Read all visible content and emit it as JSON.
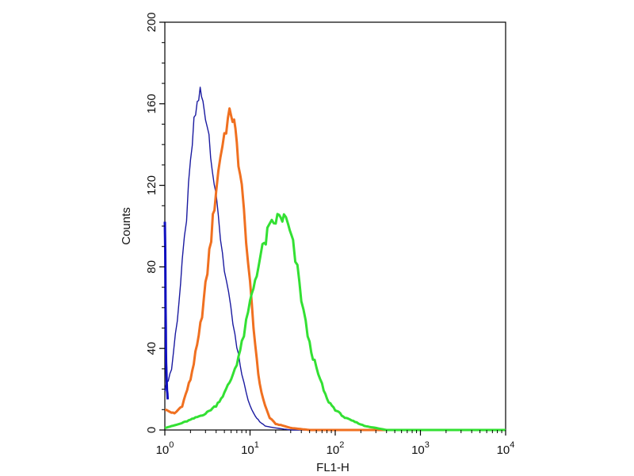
{
  "chart_data": {
    "type": "line",
    "title": "",
    "xlabel": "FL1-H",
    "ylabel": "Counts",
    "xscale": "log",
    "xlim": [
      1,
      10000
    ],
    "ylim": [
      0,
      200
    ],
    "x_ticks": [
      {
        "value": 1,
        "base": "10",
        "exp": "0"
      },
      {
        "value": 10,
        "base": "10",
        "exp": "1"
      },
      {
        "value": 100,
        "base": "10",
        "exp": "2"
      },
      {
        "value": 1000,
        "base": "10",
        "exp": "3"
      },
      {
        "value": 10000,
        "base": "10",
        "exp": "4"
      }
    ],
    "y_ticks": [
      "0",
      "40",
      "80",
      "120",
      "160",
      "200"
    ],
    "grid": false,
    "legend": "none",
    "series": [
      {
        "color": "#1a1aa0",
        "x": [
          1.0,
          1.2,
          1.4,
          1.6,
          1.8,
          2.0,
          2.2,
          2.4,
          2.6,
          2.8,
          3.0,
          3.3,
          3.6,
          4.0,
          4.5,
          5.0,
          5.6,
          6.3,
          7.0,
          8.0,
          9.0,
          10.0,
          11.5,
          13.0,
          15.0,
          20.0,
          30.0,
          50.0,
          100.0,
          10000
        ],
        "y": [
          20,
          30,
          55,
          80,
          105,
          130,
          150,
          160,
          166,
          160,
          155,
          145,
          130,
          112,
          95,
          80,
          65,
          52,
          40,
          28,
          18,
          12,
          7,
          4,
          2,
          1,
          0,
          0,
          0,
          0
        ]
      },
      {
        "color": "#f07020",
        "x": [
          1.0,
          1.3,
          1.6,
          2.0,
          2.5,
          3.0,
          3.5,
          4.0,
          4.5,
          5.0,
          5.5,
          6.0,
          6.5,
          7.0,
          8.0,
          9.0,
          10.0,
          11.0,
          12.0,
          13.0,
          15.0,
          17.0,
          20.0,
          25.0,
          30.0,
          50.0,
          100.0,
          10000
        ],
        "y": [
          10,
          8,
          12,
          25,
          45,
          70,
          95,
          118,
          135,
          145,
          152,
          156,
          150,
          140,
          118,
          95,
          70,
          50,
          35,
          22,
          12,
          6,
          3,
          2,
          1,
          0,
          0,
          0
        ]
      },
      {
        "color": "#33e033",
        "x": [
          1.0,
          1.5,
          2.0,
          3.0,
          4.0,
          5.0,
          6.0,
          7.0,
          8.0,
          9.0,
          10.0,
          12.0,
          14.0,
          16.0,
          18.0,
          20.0,
          22.0,
          25.0,
          28.0,
          32.0,
          36.0,
          40.0,
          45.0,
          50.0,
          60.0,
          70.0,
          80.0,
          100.0,
          130.0,
          170.0,
          220.0,
          300.0,
          400.0,
          10000
        ],
        "y": [
          1,
          3,
          5,
          8,
          12,
          18,
          25,
          33,
          42,
          52,
          62,
          78,
          88,
          96,
          100,
          103,
          104,
          104,
          100,
          90,
          78,
          65,
          52,
          42,
          30,
          22,
          15,
          10,
          6,
          4,
          2,
          1,
          0,
          0
        ]
      },
      {
        "color": "#1010c0",
        "x": [
          1.0,
          1.01,
          1.02,
          1.03,
          1.04,
          1.06,
          1.08
        ],
        "y": [
          104,
          90,
          60,
          38,
          30,
          20,
          15
        ]
      }
    ]
  }
}
